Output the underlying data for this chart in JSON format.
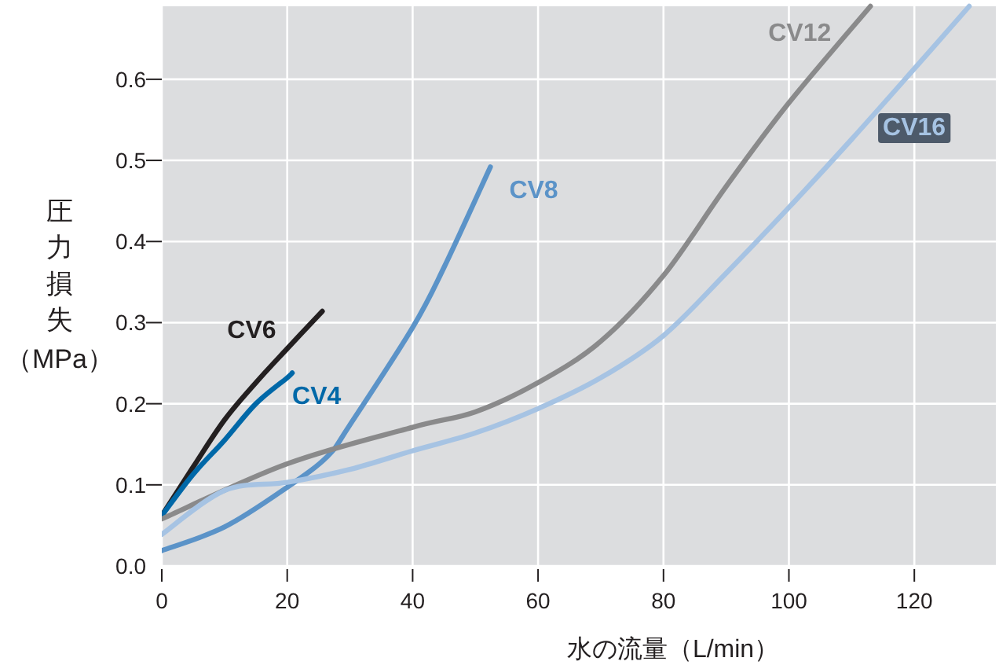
{
  "chart_data": {
    "type": "line",
    "xlabel": "水の流量（L/min）",
    "ylabel": "圧力損失（MPa）",
    "xlim": [
      0,
      133
    ],
    "ylim": [
      0,
      0.69
    ],
    "xticks": [
      0,
      20,
      40,
      60,
      80,
      100,
      120
    ],
    "yticks": [
      {
        "value": 0,
        "label": "0.0"
      },
      {
        "value": 0.1,
        "label": "0.1"
      },
      {
        "value": 0.2,
        "label": "0.2"
      },
      {
        "value": 0.3,
        "label": "0.3"
      },
      {
        "value": 0.4,
        "label": "0.4"
      },
      {
        "value": 0.5,
        "label": "0.5"
      },
      {
        "value": 0.6,
        "label": "0.6"
      }
    ],
    "grid": true,
    "line_style": "solid",
    "marker": "none",
    "series": [
      {
        "name": "CV6",
        "color": "#231f20",
        "x": [
          0,
          5,
          10,
          15,
          20,
          25.6
        ],
        "values": [
          0.062,
          0.122,
          0.18,
          0.226,
          0.268,
          0.314
        ]
      },
      {
        "name": "CV4",
        "color": "#0068a8",
        "x": [
          0,
          5,
          10,
          15,
          20,
          20.8
        ],
        "values": [
          0.062,
          0.113,
          0.155,
          0.2,
          0.232,
          0.238
        ]
      },
      {
        "name": "CV8",
        "color": "#5b93c8",
        "x": [
          0,
          10,
          20,
          26.4,
          30,
          40,
          45,
          52.4
        ],
        "values": [
          0.019,
          0.048,
          0.097,
          0.135,
          0.174,
          0.294,
          0.368,
          0.492
        ]
      },
      {
        "name": "CV12",
        "color": "#8a8a8b",
        "x": [
          0,
          20,
          40,
          50,
          60,
          70,
          80,
          90,
          100,
          113
        ],
        "values": [
          0.058,
          0.126,
          0.171,
          0.19,
          0.226,
          0.277,
          0.358,
          0.468,
          0.571,
          0.69
        ]
      },
      {
        "name": "CV16",
        "color": "#a6c3e3",
        "x": [
          0,
          10,
          20,
          30,
          40,
          50,
          60,
          70,
          80,
          90,
          100,
          110,
          120,
          128.75
        ],
        "values": [
          0.039,
          0.093,
          0.103,
          0.119,
          0.142,
          0.164,
          0.194,
          0.232,
          0.284,
          0.361,
          0.442,
          0.526,
          0.613,
          0.69
        ]
      }
    ]
  }
}
